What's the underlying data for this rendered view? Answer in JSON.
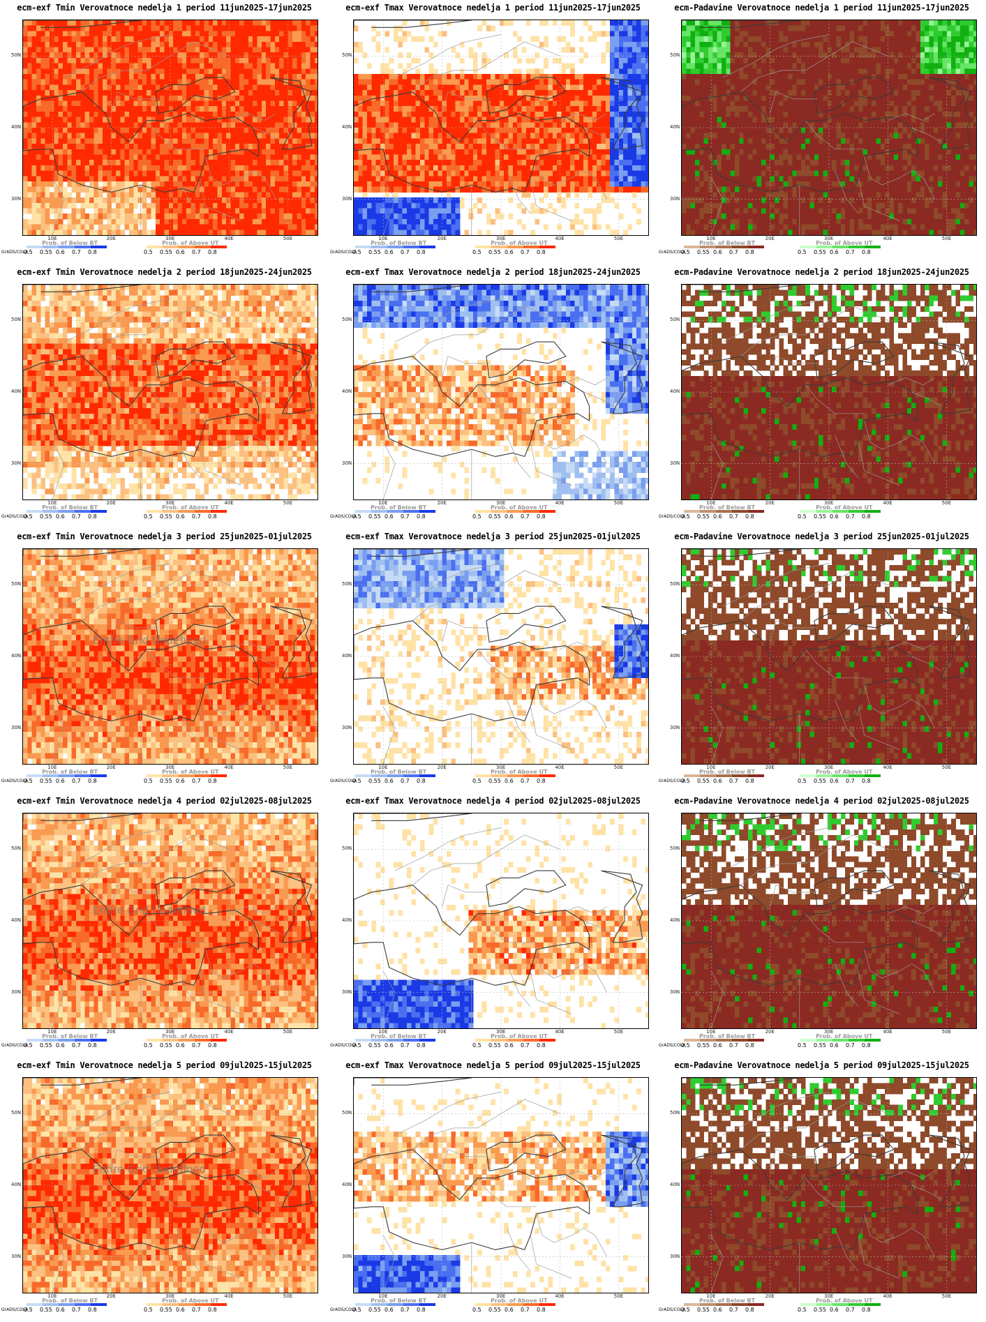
{
  "credit": "GrADS/COLA",
  "undefined_text": "Entire Grid Undefined",
  "lat_labels": [
    "50N",
    "40N",
    "30N"
  ],
  "lon_labels": [
    "10E",
    "20E",
    "30E",
    "40E",
    "50E"
  ],
  "legends": {
    "below": {
      "title": "Prob. of Below BT",
      "ticks": [
        "0.5",
        "0.55",
        "0.6",
        "0.7",
        "0.8"
      ],
      "colors": [
        "#c6dbf5",
        "#9fbff0",
        "#7a9ef0",
        "#4a6ff0",
        "#1a3ae6"
      ]
    },
    "above": {
      "title": "Prob. of Above UT",
      "ticks": [
        "0.5",
        "0.55",
        "0.6",
        "0.7",
        "0.8"
      ],
      "colors": [
        "#ffe2a6",
        "#fcc080",
        "#f99a50",
        "#f86a2a",
        "#ff2a00"
      ]
    },
    "below_precip": {
      "title": "Prob. of Below BT",
      "ticks": [
        "0.5",
        "0.55",
        "0.6",
        "0.7",
        "0.8"
      ],
      "colors": [
        "#d8b89a",
        "#c09070",
        "#a8724e",
        "#8e4a2a",
        "#8b2a22"
      ]
    },
    "above_precip": {
      "title": "Prob. of Above UT",
      "ticks": [
        "0.5",
        "0.55",
        "0.6",
        "0.7",
        "0.8"
      ],
      "colors": [
        "#ccffcc",
        "#99f599",
        "#66e566",
        "#2fcc2f",
        "#10b010"
      ]
    }
  },
  "panels": [
    {
      "title": "ecm-exf Tmin Verovatnoce nedelja 1 period 11jun2025-17jun2025",
      "variable": "Tmin",
      "week": 1,
      "undefined": false
    },
    {
      "title": "ecm-exf Tmax Verovatnoce nedelja 1 period 11jun2025-17jun2025",
      "variable": "Tmax",
      "week": 1,
      "undefined": false
    },
    {
      "title": "ecm-Padavine Verovatnoce nedelja 1 period 11jun2025-17jun2025",
      "variable": "Padavine",
      "week": 1,
      "undefined": false
    },
    {
      "title": "ecm-exf Tmin Verovatnoce nedelja 2 period 18jun2025-24jun2025",
      "variable": "Tmin",
      "week": 2,
      "undefined": false
    },
    {
      "title": "ecm-exf Tmax Verovatnoce nedelja 2 period 18jun2025-24jun2025",
      "variable": "Tmax",
      "week": 2,
      "undefined": false
    },
    {
      "title": "ecm-Padavine Verovatnoce nedelja 2 period 18jun2025-24jun2025",
      "variable": "Padavine",
      "week": 2,
      "undefined": false
    },
    {
      "title": "ecm-exf Tmin Verovatnoce nedelja 3 period 25jun2025-01jul2025",
      "variable": "Tmin",
      "week": 3,
      "undefined": true
    },
    {
      "title": "ecm-exf Tmax Verovatnoce nedelja 3 period 25jun2025-01jul2025",
      "variable": "Tmax",
      "week": 3,
      "undefined": false
    },
    {
      "title": "ecm-Padavine Verovatnoce nedelja 3 period 25jun2025-01jul2025",
      "variable": "Padavine",
      "week": 3,
      "undefined": false
    },
    {
      "title": "ecm-exf Tmin Verovatnoce nedelja 4 period 02jul2025-08jul2025",
      "variable": "Tmin",
      "week": 4,
      "undefined": true
    },
    {
      "title": "ecm-exf Tmax Verovatnoce nedelja 4 period 02jul2025-08jul2025",
      "variable": "Tmax",
      "week": 4,
      "undefined": false
    },
    {
      "title": "ecm-Padavine Verovatnoce nedelja 4 period 02jul2025-08jul2025",
      "variable": "Padavine",
      "week": 4,
      "undefined": false
    },
    {
      "title": "ecm-exf Tmin Verovatnoce nedelja 5 period 09jul2025-15jul2025",
      "variable": "Tmin",
      "week": 5,
      "undefined": true
    },
    {
      "title": "ecm-exf Tmax Verovatnoce nedelja 5 period 09jul2025-15jul2025",
      "variable": "Tmax",
      "week": 5,
      "undefined": false
    },
    {
      "title": "ecm-Padavine Verovatnoce nedelja 5 period 09jul2025-15jul2025",
      "variable": "Padavine",
      "week": 5,
      "undefined": false
    }
  ]
}
